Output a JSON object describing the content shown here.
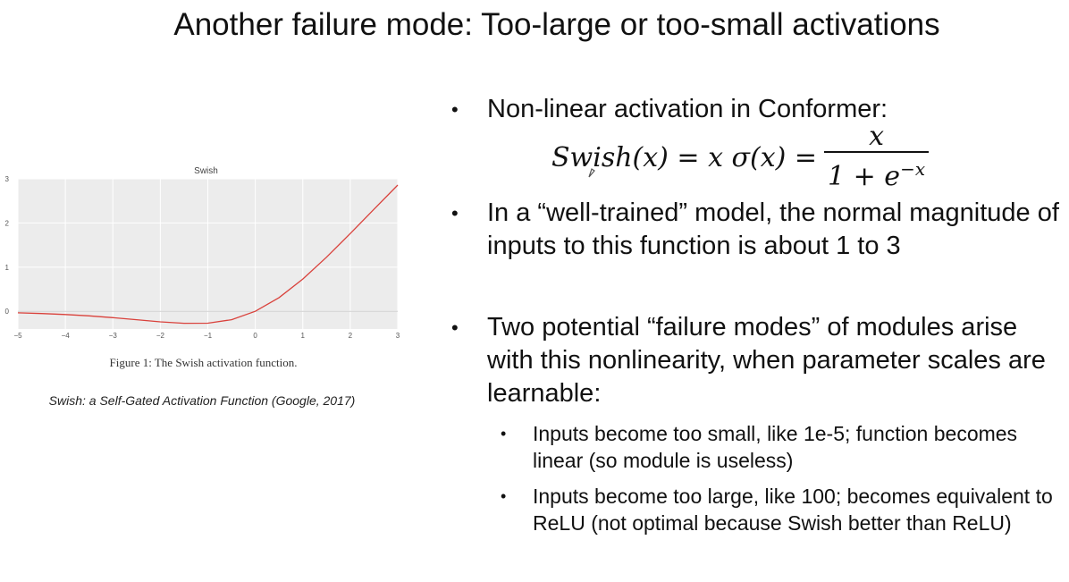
{
  "slide": {
    "title": "Another failure mode: Too-large or too-small activations"
  },
  "figure": {
    "caption": "Figure 1: The Swish activation function.",
    "source": "Swish: a Self-Gated Activation Function (Google, 2017)"
  },
  "chart_data": {
    "type": "line",
    "title": "Swish",
    "xlim": [
      -5,
      3
    ],
    "ylim": [
      -0.4,
      3
    ],
    "xticks": [
      "−5",
      "−4",
      "−3",
      "−2",
      "−1",
      "0",
      "1",
      "2",
      "3"
    ],
    "xtick_values": [
      -5,
      -4,
      -3,
      -2,
      -1,
      0,
      1,
      2,
      3
    ],
    "yticks": [
      "0",
      "1",
      "2",
      "3"
    ],
    "ytick_values": [
      0,
      1,
      2,
      3
    ],
    "series": [
      {
        "color": "#d9413b",
        "x": [
          -5.0,
          -4.5,
          -4.0,
          -3.5,
          -3.0,
          -2.5,
          -2.0,
          -1.5,
          -1.0,
          -0.5,
          0.0,
          0.5,
          1.0,
          1.5,
          2.0,
          2.5,
          3.0
        ],
        "y": [
          -0.033,
          -0.05,
          -0.072,
          -0.103,
          -0.142,
          -0.189,
          -0.238,
          -0.27,
          -0.269,
          -0.189,
          0.0,
          0.311,
          0.731,
          1.226,
          1.762,
          2.31,
          2.858
        ]
      }
    ],
    "grid": true,
    "background": "#ececec"
  },
  "formula": {
    "lhs": "Swish(x) = x σ(x) =",
    "numerator": "x",
    "denominator_base": "1 + e",
    "denominator_exp": "−x"
  },
  "bullets": [
    {
      "text": "Non-linear activation in Conformer:"
    },
    {
      "text": "In a “well-trained” model, the normal magnitude of inputs to this function is about 1 to 3"
    },
    {
      "text": "Two potential “failure modes” of modules arise with this nonlinearity, when parameter scales are learnable:"
    }
  ],
  "sub_bullets": [
    {
      "text": "Inputs become too small, like 1e-5; function becomes linear (so module is useless)"
    },
    {
      "text": "Inputs become too large, like 100; becomes equivalent to ReLU (not optimal because Swish better than ReLU)"
    }
  ],
  "bullet_symbol": "•"
}
